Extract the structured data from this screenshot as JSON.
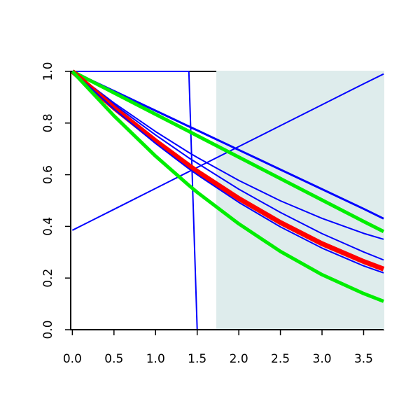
{
  "chart_data": {
    "type": "line",
    "x": [
      0,
      0.5,
      1,
      1.4,
      1.5,
      2,
      2.5,
      3,
      3.5,
      3.74
    ],
    "xlim": [
      -0.02,
      3.74
    ],
    "ylim": [
      0,
      1
    ],
    "xticks": [
      {
        "value": 0,
        "label": "0.0"
      },
      0.5,
      {
        "value": 1,
        "label": "1.0"
      },
      1.5,
      {
        "value": 2,
        "label": "2.0"
      },
      2.5,
      {
        "value": 3,
        "label": "3.0"
      },
      3.5
    ],
    "yticks": [
      {
        "value": 0,
        "label": "0.0"
      },
      0.2,
      0.4,
      0.6,
      0.8,
      {
        "value": 1,
        "label": "1.0"
      }
    ],
    "shaded_region": {
      "xmin": 1.73,
      "xmax": 3.74,
      "color": "#deecec"
    },
    "series": [
      {
        "color": "#0000ff",
        "width": 2,
        "values": [
          0.385,
          0.466,
          0.547,
          0.612,
          0.628,
          0.709,
          0.79,
          0.871,
          0.952,
          0.99
        ]
      },
      {
        "color": "#0000ff",
        "width": 2,
        "values": [
          1,
          1,
          1,
          1,
          0,
          0,
          0,
          0,
          0,
          0
        ]
      },
      {
        "color": "#0000ff",
        "width": 3,
        "values": [
          1,
          0.924,
          0.848,
          0.787,
          0.772,
          0.696,
          0.62,
          0.544,
          0.468,
          0.43
        ]
      },
      {
        "color": "#00ee00",
        "width": 5,
        "values": [
          1,
          0.917,
          0.834,
          0.768,
          0.751,
          0.668,
          0.585,
          0.502,
          0.419,
          0.38
        ]
      },
      {
        "color": "#0000ff",
        "width": 2,
        "values": [
          1,
          0.878,
          0.767,
          0.686,
          0.667,
          0.578,
          0.499,
          0.431,
          0.373,
          0.35
        ]
      },
      {
        "color": "#0000ff",
        "width": 2,
        "values": [
          1,
          0.872,
          0.754,
          0.665,
          0.645,
          0.544,
          0.454,
          0.372,
          0.301,
          0.27
        ]
      },
      {
        "color": "#ff0000",
        "width": 7,
        "values": [
          1,
          0.859,
          0.731,
          0.636,
          0.613,
          0.508,
          0.415,
          0.333,
          0.264,
          0.235
        ]
      },
      {
        "color": "#0000ff",
        "width": 2,
        "values": [
          1,
          0.854,
          0.721,
          0.623,
          0.6,
          0.493,
          0.398,
          0.316,
          0.247,
          0.22
        ]
      },
      {
        "color": "#00ee00",
        "width": 5,
        "values": [
          1,
          0.828,
          0.672,
          0.559,
          0.532,
          0.41,
          0.303,
          0.213,
          0.14,
          0.11
        ]
      }
    ]
  }
}
